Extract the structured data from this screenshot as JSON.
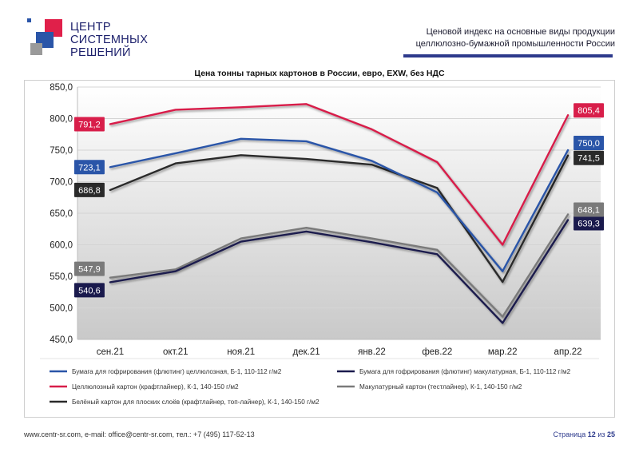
{
  "header": {
    "logo_lines": [
      "ЦЕНТР",
      "СИСТЕМНЫХ",
      "РЕШЕНИЙ"
    ],
    "doc_title_lines": [
      "Ценовой индекс на основные виды продукции",
      "целлюлозно-бумажной промышленности России"
    ]
  },
  "colors": {
    "logo_red": "#e0204a",
    "logo_blue": "#2a55a8",
    "logo_grey": "#9a9a9a",
    "accent_bar": "#2d3a8c"
  },
  "chart_data": {
    "type": "line",
    "title": "Цена тонны тарных картонов в России, евро, EXW, без НДС",
    "categories": [
      "сен.21",
      "окт.21",
      "ноя.21",
      "дек.21",
      "янв.22",
      "фев.22",
      "мар.22",
      "апр.22"
    ],
    "ylim": [
      450,
      850
    ],
    "yticks": [
      "450,0",
      "500,0",
      "550,0",
      "600,0",
      "650,0",
      "700,0",
      "750,0",
      "800,0",
      "850,0"
    ],
    "grid": true,
    "legend_position": "bottom",
    "series": [
      {
        "name": "Бумага для гофрирования (флютинг) целлюлозная, Б-1, 110-112 г/м2",
        "color": "#2a55a8",
        "values": [
          723.1,
          745,
          768,
          764,
          733,
          683,
          558,
          750.0
        ],
        "labels": {
          "0": "723,1",
          "7": "750,0"
        }
      },
      {
        "name": "Бумага для гофрирования (флютинг) макулатурная, Б-1, 110-112 г/м2",
        "color": "#1a1a4d",
        "values": [
          540.6,
          558,
          605,
          621,
          604,
          585,
          476,
          639.3
        ],
        "labels": {
          "0": "540,6",
          "7": "639,3"
        }
      },
      {
        "name": "Целлюлозный картон (крафтлайнер), К-1, 140-150 г/м2",
        "color": "#d81e4a",
        "values": [
          791.2,
          814,
          818,
          823,
          783,
          731,
          600,
          805.4
        ],
        "labels": {
          "0": "791,2",
          "7": "805,4"
        }
      },
      {
        "name": "Макулатурный картон (тестлайнер), К-1, 140-150 г/м2",
        "color": "#7a7a7a",
        "values": [
          547.9,
          561,
          610,
          627,
          610,
          592,
          486,
          648.1
        ],
        "labels": {
          "0": "547,9",
          "7": "648,1"
        }
      },
      {
        "name": "Белёный картон для плоских слоёв (крафтлайнер, топ-лайнер), К-1, 140-150 г/м2",
        "color": "#2a2a2a",
        "values": [
          686.8,
          729,
          742,
          736,
          727,
          690,
          541,
          741.5
        ],
        "labels": {
          "0": "686,8",
          "7": "741,5"
        }
      }
    ]
  },
  "footer": {
    "contacts": "www.centr-sr.com, e-mail: office@centr-sr.com, тел.: +7 (495) 117-52-13",
    "page_word": "Страница",
    "page_current": "12",
    "page_of": "из",
    "page_total": "25"
  }
}
